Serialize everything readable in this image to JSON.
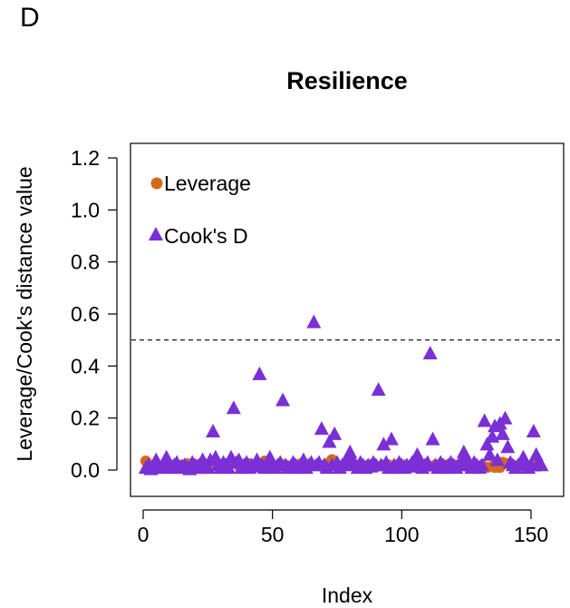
{
  "panel_label": "D",
  "chart_data": {
    "type": "scatter",
    "title": "Resilience",
    "xlabel": "Index",
    "ylabel": "Leverage/Cook's distance value",
    "xlim": [
      0,
      155
    ],
    "ylim": [
      0,
      1.2
    ],
    "x_ticks": [
      "0",
      "50",
      "100",
      "150"
    ],
    "y_ticks": [
      "0.0",
      "0.2",
      "0.4",
      "0.6",
      "0.8",
      "1.0",
      "1.2"
    ],
    "grid": false,
    "legend_position": "top-left",
    "reference_line": {
      "y": 0.5,
      "style": "dashed"
    },
    "colors": {
      "leverage": "#d4691c",
      "cooks_d": "#7b2fd6"
    },
    "series": [
      {
        "name": "Leverage",
        "marker": "circle",
        "color": "#d4691c",
        "x": [
          1,
          3,
          5,
          7,
          9,
          11,
          13,
          15,
          17,
          19,
          21,
          23,
          25,
          27,
          29,
          31,
          33,
          35,
          37,
          39,
          41,
          43,
          45,
          47,
          49,
          51,
          53,
          55,
          57,
          59,
          61,
          63,
          65,
          67,
          69,
          71,
          73,
          75,
          77,
          79,
          81,
          83,
          85,
          87,
          89,
          91,
          93,
          95,
          97,
          99,
          101,
          103,
          105,
          107,
          109,
          111,
          113,
          115,
          117,
          119,
          121,
          123,
          125,
          127,
          129,
          131,
          133,
          135,
          136,
          137,
          138,
          139,
          141,
          143,
          145,
          147,
          149,
          151,
          153
        ],
        "values": [
          0.035,
          0.02,
          0.025,
          0.015,
          0.03,
          0.02,
          0.01,
          0.02,
          0.025,
          0.015,
          0.02,
          0.03,
          0.015,
          0.02,
          0.025,
          0.015,
          0.02,
          0.03,
          0.015,
          0.02,
          0.025,
          0.015,
          0.02,
          0.035,
          0.02,
          0.015,
          0.025,
          0.02,
          0.015,
          0.02,
          0.025,
          0.015,
          0.02,
          0.02,
          0.015,
          0.025,
          0.04,
          0.02,
          0.015,
          0.02,
          0.025,
          0.02,
          0.015,
          0.02,
          0.025,
          0.015,
          0.02,
          0.02,
          0.015,
          0.025,
          0.02,
          0.015,
          0.02,
          0.025,
          0.02,
          0.015,
          0.02,
          0.025,
          0.02,
          0.015,
          0.02,
          0.025,
          0.015,
          0.02,
          0.015,
          0.02,
          0.01,
          0.015,
          0.01,
          0.015,
          0.01,
          0.03,
          0.025,
          0.02,
          0.015,
          0.02,
          0.015,
          0.02,
          0.015
        ]
      },
      {
        "name": "Cook's D",
        "marker": "triangle",
        "color": "#7b2fd6",
        "x": [
          1,
          2,
          3,
          4,
          5,
          6,
          7,
          8,
          9,
          10,
          11,
          12,
          13,
          14,
          15,
          16,
          17,
          18,
          19,
          20,
          21,
          22,
          23,
          24,
          25,
          26,
          27,
          28,
          29,
          30,
          31,
          32,
          33,
          34,
          35,
          36,
          37,
          38,
          39,
          40,
          41,
          42,
          43,
          44,
          45,
          46,
          47,
          48,
          49,
          50,
          51,
          52,
          53,
          54,
          55,
          56,
          57,
          58,
          59,
          60,
          61,
          62,
          63,
          64,
          65,
          66,
          67,
          68,
          69,
          70,
          71,
          72,
          73,
          74,
          75,
          76,
          77,
          78,
          79,
          80,
          81,
          82,
          83,
          84,
          85,
          86,
          87,
          88,
          89,
          90,
          91,
          92,
          93,
          94,
          95,
          96,
          97,
          98,
          99,
          100,
          101,
          102,
          103,
          104,
          105,
          106,
          107,
          108,
          109,
          110,
          111,
          112,
          113,
          114,
          115,
          116,
          117,
          118,
          119,
          120,
          121,
          122,
          123,
          124,
          125,
          126,
          127,
          128,
          129,
          130,
          131,
          132,
          133,
          134,
          135,
          136,
          137,
          138,
          139,
          140,
          141,
          142,
          143,
          144,
          145,
          146,
          147,
          148,
          149,
          150,
          151,
          152,
          153,
          154
        ],
        "values": [
          0.01,
          0.02,
          0.005,
          0.015,
          0.04,
          0.02,
          0.01,
          0.03,
          0.05,
          0.02,
          0.01,
          0.02,
          0.03,
          0.01,
          0.015,
          0.02,
          0.01,
          0.005,
          0.03,
          0.02,
          0.015,
          0.01,
          0.04,
          0.02,
          0.01,
          0.04,
          0.15,
          0.05,
          0.02,
          0.01,
          0.03,
          0.02,
          0.01,
          0.05,
          0.24,
          0.03,
          0.04,
          0.01,
          0.02,
          0.03,
          0.01,
          0.02,
          0.015,
          0.04,
          0.37,
          0.02,
          0.01,
          0.03,
          0.05,
          0.02,
          0.01,
          0.02,
          0.03,
          0.27,
          0.02,
          0.01,
          0.015,
          0.03,
          0.02,
          0.01,
          0.02,
          0.04,
          0.01,
          0.02,
          0.03,
          0.57,
          0.02,
          0.03,
          0.16,
          0.02,
          0.01,
          0.11,
          0.02,
          0.14,
          0.03,
          0.01,
          0.02,
          0.03,
          0.05,
          0.07,
          0.04,
          0.02,
          0.01,
          0.03,
          0.02,
          0.01,
          0.02,
          0.015,
          0.03,
          0.02,
          0.31,
          0.02,
          0.1,
          0.03,
          0.01,
          0.12,
          0.02,
          0.01,
          0.03,
          0.02,
          0.01,
          0.02,
          0.015,
          0.03,
          0.04,
          0.06,
          0.02,
          0.01,
          0.02,
          0.03,
          0.45,
          0.12,
          0.02,
          0.01,
          0.03,
          0.02,
          0.01,
          0.02,
          0.03,
          0.02,
          0.01,
          0.02,
          0.03,
          0.07,
          0.05,
          0.02,
          0.01,
          0.03,
          0.02,
          0.01,
          0.02,
          0.19,
          0.1,
          0.06,
          0.13,
          0.17,
          0.04,
          0.18,
          0.14,
          0.2,
          0.09,
          0.03,
          0.02,
          0.01,
          0.02,
          0.03,
          0.05,
          0.02,
          0.01,
          0.02,
          0.15,
          0.06,
          0.03,
          0.02
        ]
      }
    ]
  }
}
